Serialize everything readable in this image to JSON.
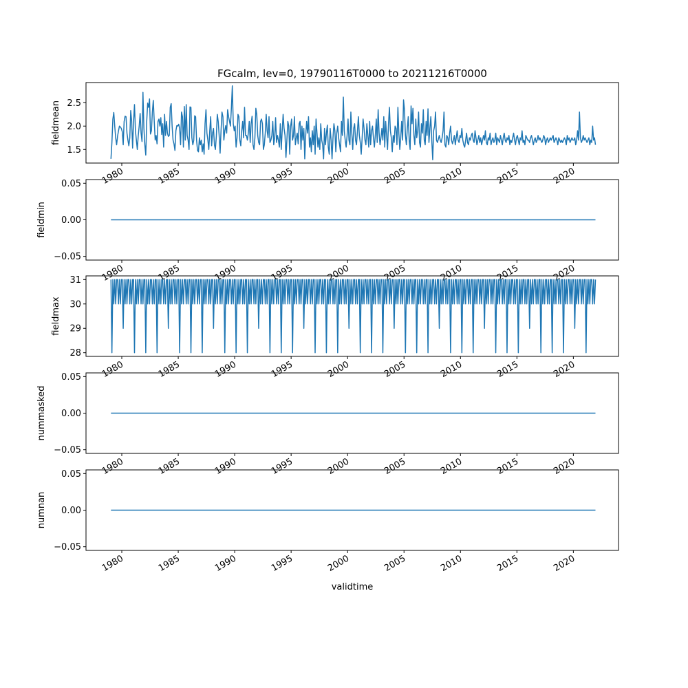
{
  "chart_data": {
    "type": "line",
    "title": "FGcalm, lev=0, 19790116T0000 to 20211216T0000",
    "xlabel": "validtime",
    "x": {
      "start": "1979-01-16",
      "end": "2021-12-16",
      "frequency": "monthly"
    },
    "xlim": [
      1976.83,
      2024.0
    ],
    "xticks": [
      1980,
      1985,
      1990,
      1995,
      2000,
      2005,
      2010,
      2015,
      2020
    ],
    "xtick_labels": [
      "1980",
      "1985",
      "1990",
      "1995",
      "2000",
      "2005",
      "2010",
      "2015",
      "2020"
    ],
    "line_color": "#1f77b4",
    "grid": false,
    "panels": [
      {
        "ylabel": "fieldmean",
        "ylim": [
          1.21,
          2.93
        ],
        "yticks": [
          1.5,
          2.0,
          2.5
        ],
        "ytick_labels": [
          "1.5",
          "2.0",
          "2.5"
        ],
        "values_by_year": [
          [
            1.3,
            1.65,
            2.15,
            2.29,
            2.0,
            1.75,
            1.6,
            1.78,
            1.9,
            2.0,
            1.98,
            1.95
          ],
          [
            1.88,
            1.6,
            2.1,
            2.21,
            2.2,
            1.85,
            1.7,
            1.58,
            1.75,
            2.33,
            2.1,
            1.53
          ],
          [
            2.1,
            2.46,
            1.9,
            1.7,
            1.5,
            1.8,
            2.0,
            2.27,
            1.85,
            1.67,
            2.72,
            1.96
          ],
          [
            1.6,
            1.38,
            2.1,
            2.49,
            2.4,
            2.58,
            1.83,
            1.9,
            2.3,
            2.55,
            2.1,
            1.7
          ],
          [
            1.8,
            1.62,
            2.1,
            2.15,
            2.0,
            2.18,
            1.82,
            2.05,
            1.55,
            2.25,
            1.8,
            2.1
          ],
          [
            1.85,
            1.78,
            1.8,
            2.4,
            2.48,
            2.0,
            1.7,
            1.62,
            1.48,
            1.9,
            2.01,
            2.0
          ],
          [
            2.04,
            1.95,
            1.6,
            2.3,
            2.2,
            1.55,
            2.42,
            1.7,
            2.46,
            1.8,
            1.7,
            1.5
          ],
          [
            2.41,
            2.4,
            1.75,
            1.6,
            1.7,
            2.22,
            2.2,
            1.7,
            1.48,
            1.45,
            1.75,
            1.6
          ],
          [
            1.7,
            1.45,
            1.62,
            1.4,
            2.05,
            2.35,
            1.85,
            1.7,
            1.5,
            1.9,
            2.2,
            1.58
          ],
          [
            1.85,
            1.95,
            1.6,
            1.5,
            1.78,
            2.25,
            2.1,
            1.8,
            1.42,
            1.9,
            2.3,
            2.2
          ],
          [
            1.7,
            1.9,
            2.01,
            1.85,
            2.35,
            2.2,
            2.1,
            2.0,
            2.39,
            2.86,
            2.05,
            1.9
          ],
          [
            2.0,
            1.55,
            1.75,
            2.25,
            2.2,
            1.7,
            1.58,
            1.9,
            2.1,
            1.75,
            2.4,
            1.8
          ],
          [
            1.8,
            1.7,
            1.85,
            2.1,
            1.65,
            2.05,
            2.21,
            1.6,
            1.5,
            1.75,
            2.38,
            2.25
          ],
          [
            1.8,
            1.65,
            1.6,
            2.1,
            2.15,
            2.05,
            1.5,
            1.6,
            1.85,
            2.25,
            1.9,
            1.75
          ],
          [
            2.2,
            1.65,
            1.7,
            1.8,
            2.1,
            1.6,
            1.75,
            2.18,
            1.65,
            1.8,
            1.7,
            1.55
          ],
          [
            2.05,
            1.5,
            1.9,
            2.25,
            1.95,
            1.8,
            1.33,
            1.7,
            2.1,
            2.0,
            1.4,
            2.0
          ],
          [
            2.15,
            1.7,
            1.8,
            2.2,
            1.6,
            1.75,
            1.85,
            1.62,
            2.05,
            2.1,
            1.5,
            2.0
          ],
          [
            1.7,
            1.95,
            1.3,
            1.8,
            2.1,
            1.85,
            2.2,
            1.55,
            1.75,
            1.45,
            1.9,
            1.6
          ],
          [
            2.0,
            1.4,
            2.15,
            1.85,
            1.55,
            1.75,
            1.5,
            2.05,
            1.7,
            1.6,
            1.3,
            1.95
          ],
          [
            1.6,
            1.85,
            2.02,
            1.55,
            1.4,
            1.95,
            1.7,
            1.3,
            1.75,
            2.05,
            1.9,
            1.45
          ],
          [
            1.85,
            2.0,
            1.75,
            1.6,
            1.45,
            2.1,
            1.8,
            2.62,
            1.9,
            1.7,
            1.55,
            1.8
          ],
          [
            2.15,
            1.7,
            1.6,
            2.3,
            1.85,
            1.5,
            1.95,
            2.05,
            1.7,
            1.6,
            1.9,
            2.2
          ],
          [
            1.8,
            1.65,
            1.4,
            1.75,
            2.15,
            1.95,
            1.7,
            1.6,
            2.05,
            1.8,
            1.55,
            2.1
          ],
          [
            1.6,
            1.9,
            2.0,
            1.75,
            1.55,
            1.8,
            2.15,
            1.65,
            2.35,
            1.85,
            1.6,
            1.75
          ],
          [
            1.95,
            1.7,
            2.2,
            1.55,
            2.1,
            1.8,
            1.5,
            2.05,
            2.4,
            1.9,
            1.75,
            1.45
          ],
          [
            1.8,
            1.65,
            2.0,
            1.95,
            1.6,
            2.4,
            1.85,
            1.5,
            1.75,
            2.1,
            1.7,
            2.56
          ],
          [
            2.35,
            1.8,
            1.6,
            1.95,
            2.2,
            1.7,
            1.5,
            2.43,
            2.05,
            2.38,
            1.8,
            1.6
          ],
          [
            2.15,
            1.75,
            1.9,
            2.3,
            1.65,
            1.55,
            2.05,
            1.85,
            2.35,
            1.7,
            1.6,
            2.1
          ],
          [
            1.8,
            2.37,
            1.65,
            1.95,
            2.2,
            1.7,
            1.28,
            1.9,
            2.0,
            2.3,
            1.7,
            1.65
          ],
          [
            1.72,
            1.8,
            1.7,
            1.65,
            1.75,
            1.9,
            2.3,
            1.6,
            1.55,
            1.8,
            1.75,
            1.6
          ],
          [
            1.85,
            2.0,
            1.7,
            1.62,
            1.7,
            1.8,
            1.6,
            1.75,
            1.9,
            1.7,
            1.65,
            1.8
          ],
          [
            1.75,
            1.95,
            1.7,
            1.6,
            1.55,
            1.7,
            1.85,
            1.65,
            1.6,
            1.75,
            1.7,
            1.8
          ],
          [
            1.85,
            1.7,
            1.65,
            1.9,
            1.75,
            1.6,
            1.7,
            1.8,
            1.65,
            1.75,
            1.6,
            1.7
          ],
          [
            1.8,
            1.7,
            1.9,
            1.65,
            1.6,
            1.75,
            1.7,
            1.85,
            1.6,
            1.7,
            1.75,
            1.65
          ],
          [
            1.7,
            1.85,
            1.6,
            1.75,
            1.7,
            1.65,
            1.8,
            1.7,
            1.6,
            1.75,
            1.85,
            1.7
          ],
          [
            1.65,
            1.75,
            1.7,
            1.8,
            1.6,
            1.7,
            1.65,
            1.75,
            1.85,
            1.7,
            1.6,
            1.75
          ],
          [
            1.8,
            1.7,
            1.6,
            1.75,
            1.7,
            1.9,
            1.65,
            1.7,
            1.6,
            1.8,
            1.75,
            1.7
          ],
          [
            1.7,
            1.65,
            1.75,
            1.8,
            1.7,
            1.6,
            1.7,
            1.75,
            1.65,
            1.7,
            1.8,
            1.7
          ],
          [
            1.75,
            1.7,
            1.65,
            1.7,
            1.8,
            1.75,
            1.6,
            1.7,
            1.75,
            1.65,
            1.7,
            1.75
          ],
          [
            1.7,
            1.75,
            1.8,
            1.65,
            1.7,
            1.75,
            1.7,
            1.6,
            1.75,
            1.7,
            1.65,
            1.7
          ],
          [
            1.65,
            1.7,
            1.75,
            1.7,
            1.6,
            1.8,
            1.7,
            1.75,
            1.65,
            1.7,
            1.75,
            1.7
          ],
          [
            1.7,
            1.75,
            1.6,
            1.7,
            1.9,
            1.7,
            2.3,
            1.75,
            1.65,
            1.7,
            1.8,
            1.7
          ],
          [
            1.75,
            1.7,
            1.65,
            1.7,
            1.75,
            1.6,
            1.7,
            1.65,
            2.0,
            1.7,
            1.75,
            1.6
          ]
        ]
      },
      {
        "ylabel": "fieldmin",
        "ylim": [
          -0.055,
          0.055
        ],
        "yticks": [
          -0.05,
          0.0,
          0.05
        ],
        "ytick_labels": [
          "−0.05",
          "0.00",
          "0.05"
        ],
        "constant": 0
      },
      {
        "ylabel": "fieldmax",
        "ylim": [
          27.85,
          31.15
        ],
        "yticks": [
          28,
          29,
          30,
          31
        ],
        "ytick_labels": [
          "28",
          "29",
          "30",
          "31"
        ],
        "rule": "days_in_month"
      },
      {
        "ylabel": "nummasked",
        "ylim": [
          -0.055,
          0.055
        ],
        "yticks": [
          -0.05,
          0.0,
          0.05
        ],
        "ytick_labels": [
          "−0.05",
          "0.00",
          "0.05"
        ],
        "constant": 0
      },
      {
        "ylabel": "numnan",
        "ylim": [
          -0.055,
          0.055
        ],
        "yticks": [
          -0.05,
          0.0,
          0.05
        ],
        "ytick_labels": [
          "−0.05",
          "0.00",
          "0.05"
        ],
        "constant": 0
      }
    ]
  }
}
